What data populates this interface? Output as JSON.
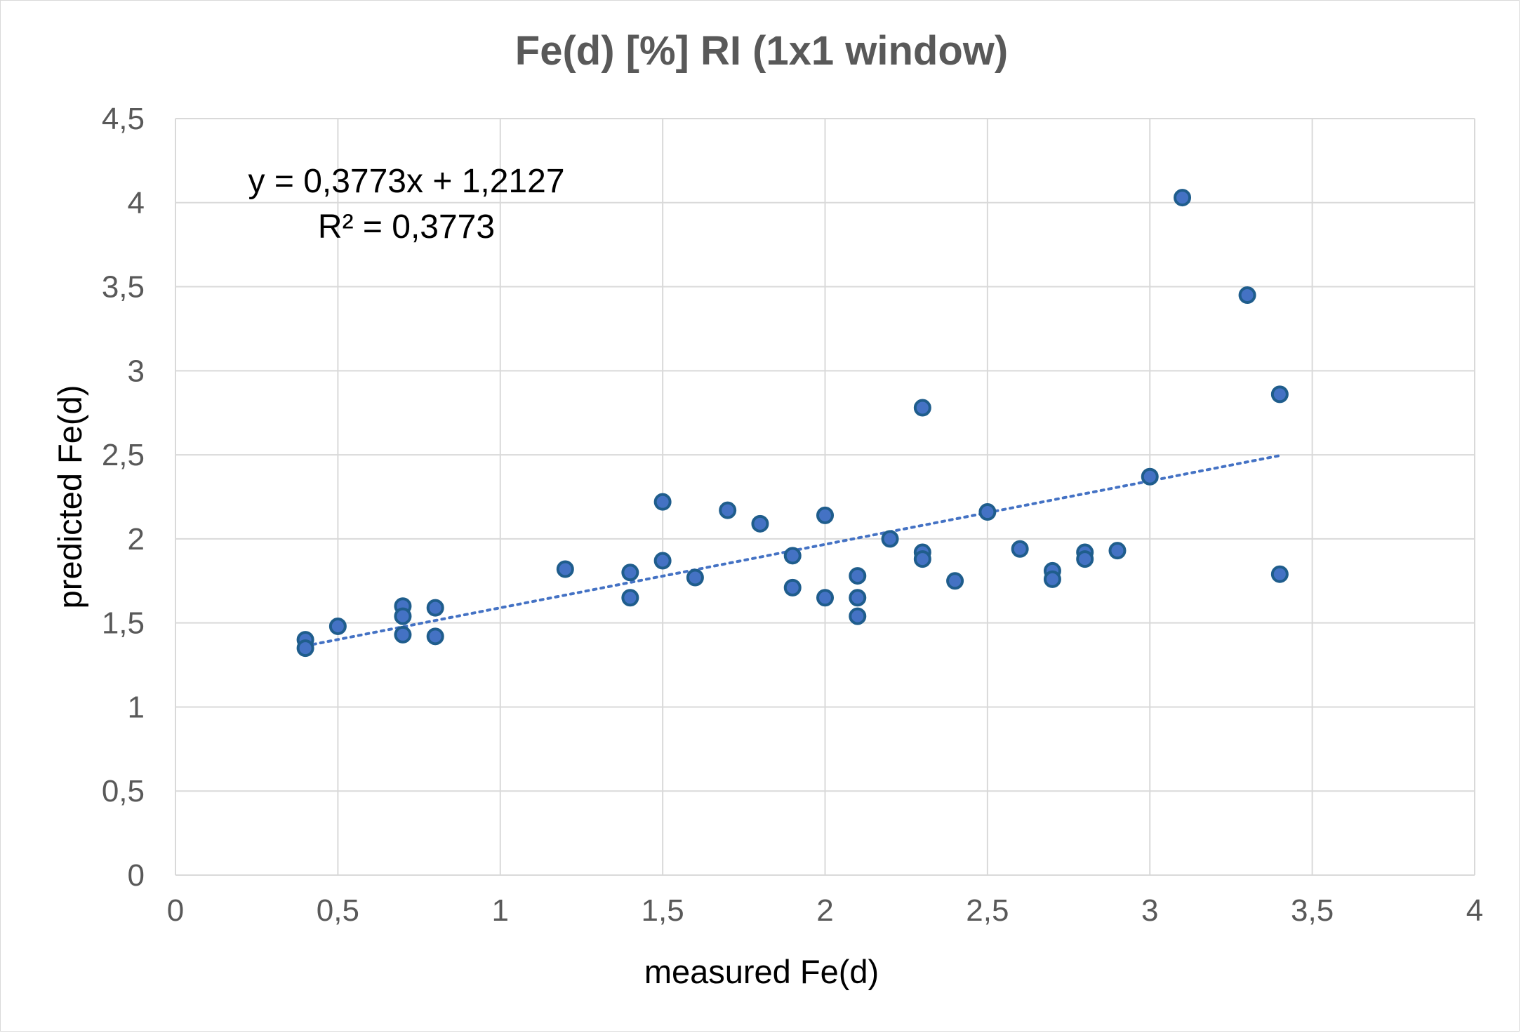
{
  "chart_data": {
    "type": "scatter",
    "title": "Fe(d) [%] RI (1x1 window)",
    "xlabel": "measured Fe(d)",
    "ylabel": "predicted Fe(d)",
    "xlim": [
      0,
      4
    ],
    "ylim": [
      0,
      4.5
    ],
    "x_ticks": [
      0,
      0.5,
      1,
      1.5,
      2,
      2.5,
      3,
      3.5,
      4
    ],
    "x_tick_labels": [
      "0",
      "0,5",
      "1",
      "1,5",
      "2",
      "2,5",
      "3",
      "3,5",
      "4"
    ],
    "y_ticks": [
      0,
      0.5,
      1,
      1.5,
      2,
      2.5,
      3,
      3.5,
      4,
      4.5
    ],
    "y_tick_labels": [
      "0",
      "0,5",
      "1",
      "1,5",
      "2",
      "2,5",
      "3",
      "3,5",
      "4",
      "4,5"
    ],
    "grid": true,
    "legend": "none",
    "marker_color": "#4472c4",
    "marker_edge_color": "#1f5d8c",
    "trendline_color": "#4472c4",
    "series": [
      {
        "points": [
          {
            "x": 0.4,
            "y": 1.4
          },
          {
            "x": 0.4,
            "y": 1.35
          },
          {
            "x": 0.5,
            "y": 1.48
          },
          {
            "x": 0.7,
            "y": 1.6
          },
          {
            "x": 0.7,
            "y": 1.54
          },
          {
            "x": 0.7,
            "y": 1.43
          },
          {
            "x": 0.8,
            "y": 1.59
          },
          {
            "x": 0.8,
            "y": 1.42
          },
          {
            "x": 1.2,
            "y": 1.82
          },
          {
            "x": 1.4,
            "y": 1.8
          },
          {
            "x": 1.4,
            "y": 1.65
          },
          {
            "x": 1.5,
            "y": 2.22
          },
          {
            "x": 1.5,
            "y": 1.87
          },
          {
            "x": 1.6,
            "y": 1.77
          },
          {
            "x": 1.7,
            "y": 2.17
          },
          {
            "x": 1.8,
            "y": 2.09
          },
          {
            "x": 1.9,
            "y": 1.9
          },
          {
            "x": 1.9,
            "y": 1.71
          },
          {
            "x": 2.0,
            "y": 2.14
          },
          {
            "x": 2.0,
            "y": 1.65
          },
          {
            "x": 2.1,
            "y": 1.78
          },
          {
            "x": 2.1,
            "y": 1.65
          },
          {
            "x": 2.1,
            "y": 1.54
          },
          {
            "x": 2.2,
            "y": 2.0
          },
          {
            "x": 2.3,
            "y": 2.78
          },
          {
            "x": 2.3,
            "y": 1.92
          },
          {
            "x": 2.3,
            "y": 1.88
          },
          {
            "x": 2.4,
            "y": 1.75
          },
          {
            "x": 2.5,
            "y": 2.16
          },
          {
            "x": 2.6,
            "y": 1.94
          },
          {
            "x": 2.7,
            "y": 1.81
          },
          {
            "x": 2.7,
            "y": 1.76
          },
          {
            "x": 2.8,
            "y": 1.92
          },
          {
            "x": 2.8,
            "y": 1.88
          },
          {
            "x": 2.9,
            "y": 1.93
          },
          {
            "x": 3.0,
            "y": 2.37
          },
          {
            "x": 3.1,
            "y": 4.03
          },
          {
            "x": 3.3,
            "y": 3.45
          },
          {
            "x": 3.4,
            "y": 2.86
          },
          {
            "x": 3.4,
            "y": 1.79
          }
        ]
      }
    ],
    "trendline": {
      "type": "linear",
      "slope": 0.3773,
      "intercept": 1.2127,
      "x_range": [
        0.4,
        3.4
      ],
      "style": "dotted"
    },
    "annotations": {
      "equation": "y = 0,3773x + 1,2127",
      "r_squared": "R² = 0,3773"
    }
  }
}
